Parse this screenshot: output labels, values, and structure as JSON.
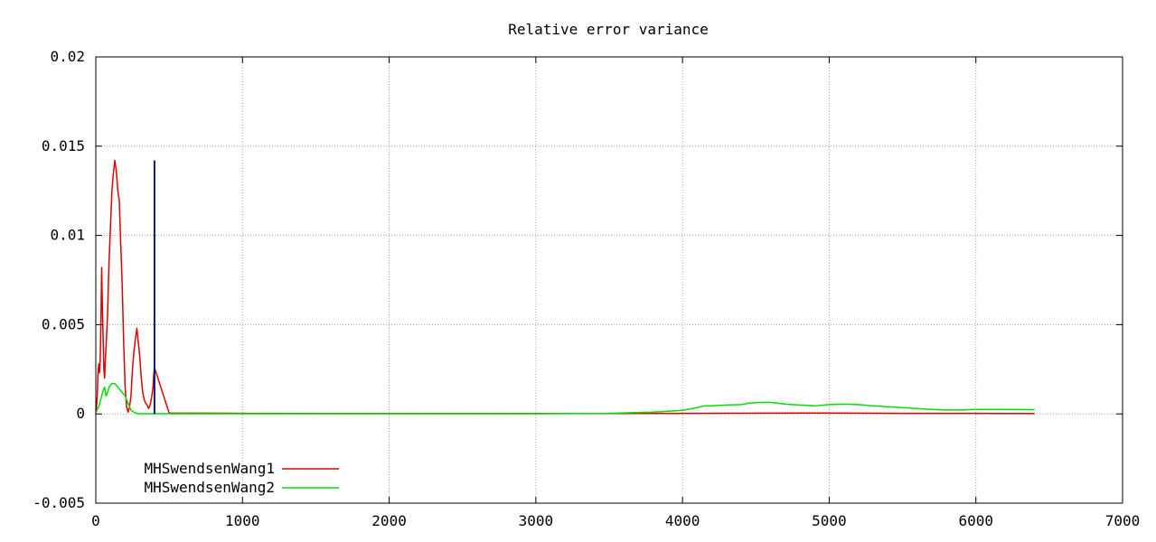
{
  "chart_data": {
    "type": "line",
    "title": "Relative error variance",
    "xlabel": "",
    "ylabel": "",
    "xlim": [
      0,
      7000
    ],
    "ylim": [
      -0.005,
      0.02
    ],
    "xticks": [
      0,
      1000,
      2000,
      3000,
      4000,
      5000,
      6000,
      7000
    ],
    "xtick_labels": [
      "0",
      "1000",
      "2000",
      "3000",
      "4000",
      "5000",
      "6000",
      "7000"
    ],
    "yticks": [
      -0.005,
      0,
      0.005,
      0.01,
      0.015,
      0.02
    ],
    "ytick_labels": [
      "-0.005",
      "0",
      "0.005",
      "0.01",
      "0.015",
      "0.02"
    ],
    "grid": true,
    "legend_position": "bottom-left",
    "series": [
      {
        "name": "MHSwendsenWang1",
        "color": "#e00000",
        "x": [
          0,
          5,
          10,
          15,
          20,
          25,
          30,
          35,
          40,
          45,
          50,
          55,
          60,
          65,
          70,
          80,
          90,
          100,
          110,
          120,
          130,
          140,
          150,
          155,
          160,
          170,
          180,
          190,
          200,
          210,
          220,
          230,
          240,
          250,
          260,
          270,
          280,
          290,
          300,
          310,
          320,
          330,
          340,
          350,
          360,
          370,
          380,
          390,
          395,
          400,
          500,
          1000,
          2000,
          3000,
          4000,
          5000,
          5500,
          6000,
          6200,
          6400
        ],
        "y": [
          0.0002,
          0.0004,
          0.001,
          0.0023,
          0.0028,
          0.0023,
          0.003,
          0.0052,
          0.0082,
          0.006,
          0.0042,
          0.0025,
          0.002,
          0.003,
          0.0038,
          0.0055,
          0.0085,
          0.0105,
          0.0125,
          0.0135,
          0.0142,
          0.0136,
          0.0125,
          0.0122,
          0.012,
          0.0095,
          0.0072,
          0.004,
          0.0015,
          0.0004,
          0.0001,
          0.0004,
          0.001,
          0.0025,
          0.0035,
          0.0042,
          0.0048,
          0.004,
          0.0032,
          0.002,
          0.0012,
          0.0008,
          0.0006,
          0.0005,
          0.0003,
          0.0005,
          0.0009,
          0.0015,
          0.0022,
          0.0026,
          5e-05,
          3e-05,
          2e-05,
          2e-05,
          3e-05,
          5e-05,
          3e-05,
          3e-05,
          2e-05,
          2e-05
        ]
      },
      {
        "name": "MHSwendsenWang2",
        "color": "#00e000",
        "x": [
          0,
          20,
          40,
          50,
          60,
          70,
          80,
          90,
          100,
          110,
          120,
          130,
          140,
          150,
          160,
          170,
          180,
          190,
          200,
          210,
          220,
          230,
          240,
          260,
          280,
          300,
          320,
          350,
          400,
          1000,
          2000,
          3000,
          3500,
          3700,
          3800,
          3900,
          4000,
          4100,
          4150,
          4200,
          4300,
          4400,
          4450,
          4500,
          4600,
          4700,
          4800,
          4900,
          5000,
          5100,
          5200,
          5300,
          5400,
          5500,
          5600,
          5700,
          5800,
          5900,
          6000,
          6200,
          6400
        ],
        "y": [
          0.0001,
          0.0004,
          0.001,
          0.0013,
          0.0015,
          0.001,
          0.0012,
          0.0015,
          0.0016,
          0.0017,
          0.0017,
          0.0017,
          0.0016,
          0.0015,
          0.0014,
          0.0013,
          0.0012,
          0.0011,
          0.001,
          0.0008,
          0.0006,
          0.0004,
          0.0002,
          0.0001,
          3e-05,
          1e-05,
          1e-05,
          1e-05,
          1e-05,
          1e-05,
          1e-05,
          1e-05,
          3e-05,
          8e-05,
          0.0001,
          0.00015,
          0.0002,
          0.00035,
          0.00045,
          0.00045,
          0.0005,
          0.00052,
          0.0006,
          0.00063,
          0.00065,
          0.00055,
          0.0005,
          0.00045,
          0.00052,
          0.00055,
          0.00052,
          0.00045,
          0.0004,
          0.00035,
          0.0003,
          0.00025,
          0.00022,
          0.00022,
          0.00025,
          0.00025,
          0.00024
        ]
      }
    ],
    "annotations": [
      {
        "type": "vertical-line",
        "color": "#0a1a6e",
        "x": 400,
        "y_from": 0,
        "y_to": 0.0142
      }
    ]
  }
}
